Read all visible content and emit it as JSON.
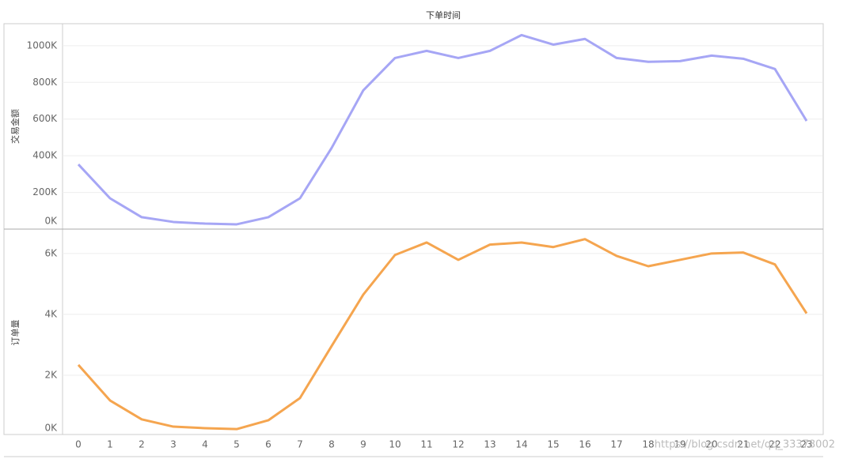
{
  "chart_data": [
    {
      "type": "line",
      "title": "下单时间",
      "ylabel": "交易金额",
      "x": [
        0,
        1,
        2,
        3,
        4,
        5,
        6,
        7,
        8,
        9,
        10,
        11,
        12,
        13,
        14,
        15,
        16,
        17,
        18,
        19,
        20,
        21,
        22,
        23
      ],
      "xlim": [
        -0.5,
        23.5
      ],
      "series": [
        {
          "name": "交易金额",
          "color": "#a6a6f5",
          "values": [
            353000,
            168000,
            65000,
            39000,
            30000,
            26000,
            65000,
            168000,
            443000,
            757000,
            933000,
            972000,
            933000,
            972000,
            1058000,
            1006000,
            1037000,
            933000,
            912000,
            916000,
            946000,
            929000,
            873000,
            590000
          ]
        }
      ],
      "ylim": [
        0,
        1120000
      ],
      "yticks": [
        {
          "value": 0,
          "label": "0K"
        },
        {
          "value": 200000,
          "label": "200K"
        },
        {
          "value": 400000,
          "label": "400K"
        },
        {
          "value": 600000,
          "label": "600K"
        },
        {
          "value": 800000,
          "label": "800K"
        },
        {
          "value": 1000000,
          "label": "1000K"
        }
      ],
      "grid": true
    },
    {
      "type": "line",
      "ylabel": "订单量",
      "x": [
        0,
        1,
        2,
        3,
        4,
        5,
        6,
        7,
        8,
        9,
        10,
        11,
        12,
        13,
        14,
        15,
        16,
        17,
        18,
        19,
        20,
        21,
        22,
        23
      ],
      "xlim": [
        -0.5,
        23.5
      ],
      "series": [
        {
          "name": "订单量",
          "color": "#f5a54f",
          "values": [
            2340,
            1170,
            550,
            310,
            260,
            230,
            520,
            1250,
            2960,
            4650,
            5950,
            6360,
            5790,
            6290,
            6360,
            6210,
            6470,
            5920,
            5580,
            5790,
            6000,
            6030,
            5640,
            4030
          ]
        }
      ],
      "ylim": [
        0,
        6800
      ],
      "yticks": [
        {
          "value": 0,
          "label": "0K"
        },
        {
          "value": 2000,
          "label": "2K"
        },
        {
          "value": 4000,
          "label": "4K"
        },
        {
          "value": 6000,
          "label": "6K"
        }
      ],
      "grid": true
    }
  ],
  "watermark": "https://blog.csdn.net/qq_33378002"
}
